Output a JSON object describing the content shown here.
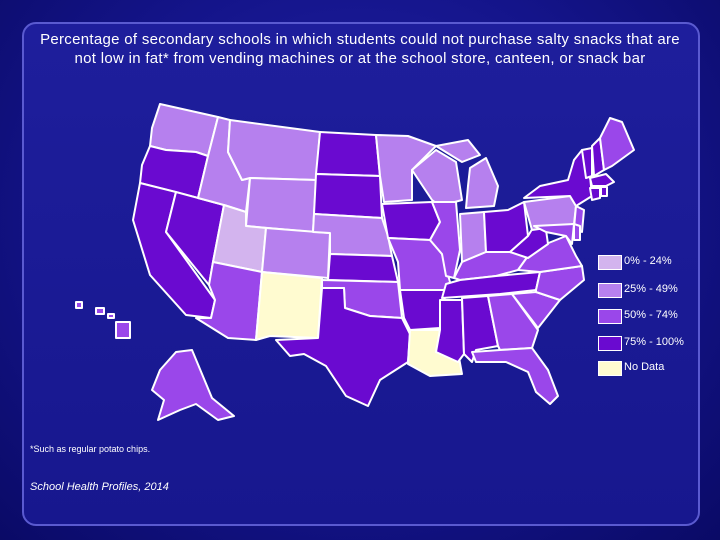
{
  "title": "Percentage of secondary schools in which students could not purchase salty snacks that are not low in fat* from vending machines or at the school store, canteen, or snack bar",
  "footnote": "*Such as regular potato chips.",
  "source": "School Health Profiles, 2014",
  "colors": {
    "c0": "#d3b4ee",
    "c1": "#b680ee",
    "c2": "#9a47ea",
    "c3": "#6a0ad0",
    "nd": "#fffbd0",
    "border": "#ffffff"
  },
  "legend": [
    {
      "label": "0% - 24%",
      "color": "#d3b4ee"
    },
    {
      "label": "25% - 49%",
      "color": "#b680ee"
    },
    {
      "label": "50% - 74%",
      "color": "#9a47ea"
    },
    {
      "label": "75% - 100%",
      "color": "#6a0ad0"
    },
    {
      "label": "No Data",
      "color": "#fffbd0"
    }
  ],
  "states": {
    "WA": "c1",
    "OR": "c3",
    "CA": "c3",
    "NV": "c3",
    "ID": "c1",
    "MT": "c1",
    "WY": "c1",
    "UT": "c0",
    "AZ": "c2",
    "NM": "nd",
    "CO": "c1",
    "ND": "c3",
    "SD": "c3",
    "NE": "c1",
    "KS": "c3",
    "OK": "c2",
    "TX": "c3",
    "MN": "c1",
    "IA": "c3",
    "MO": "c2",
    "AR": "c3",
    "LA": "nd",
    "WI": "c1",
    "IL": "c2",
    "MI": "c1",
    "IN": "c1",
    "OH": "c3",
    "KY": "c2",
    "TN": "c3",
    "MS": "c3",
    "AL": "c3",
    "GA": "c2",
    "FL": "c2",
    "SC": "c2",
    "NC": "c2",
    "VA": "c2",
    "WV": "c3",
    "PA": "c1",
    "NY": "c3",
    "VT": "c3",
    "NH": "c3",
    "ME": "c2",
    "MA": "c3",
    "CT": "c3",
    "RI": "c3",
    "NJ": "c2",
    "DE": "c2",
    "MD": "c2",
    "AK": "c2",
    "HI": "c2"
  }
}
